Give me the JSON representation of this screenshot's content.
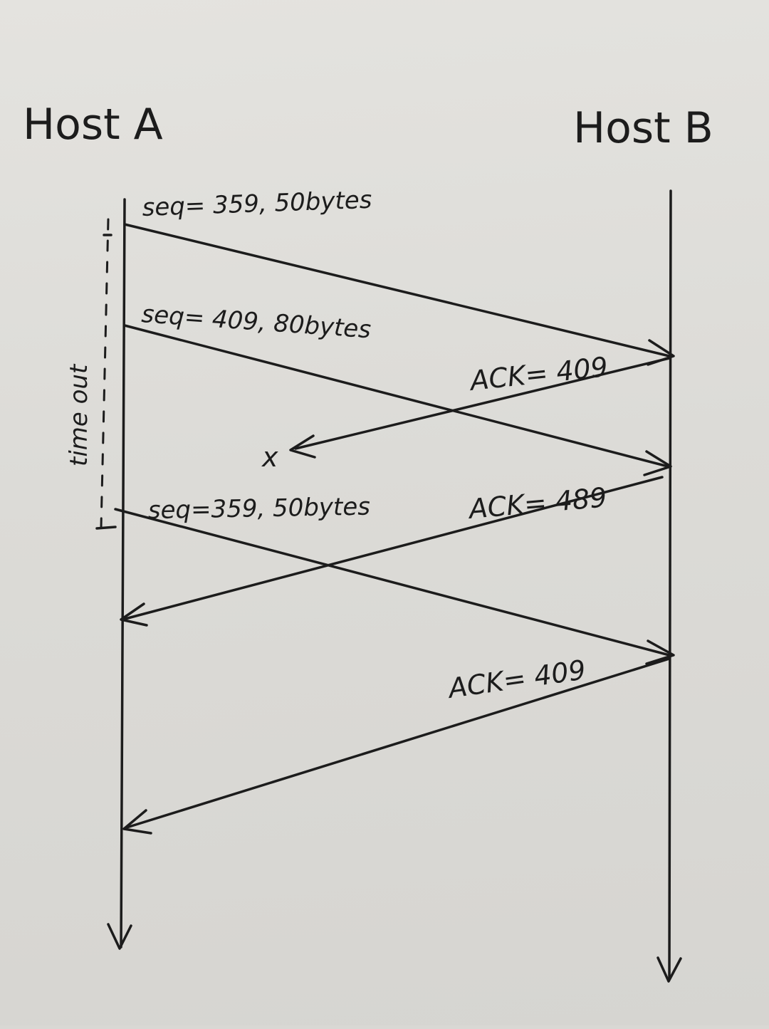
{
  "hosts": {
    "a": "Host A",
    "b": "Host B"
  },
  "messages": [
    {
      "label": "seq= 359, 50bytes",
      "direction": "A-to-B",
      "lost": false
    },
    {
      "label": "seq= 409, 80bytes",
      "direction": "A-to-B",
      "lost": false
    },
    {
      "label": "ACK= 409",
      "direction": "B-to-A",
      "lost": true
    },
    {
      "label": "ACK= 489",
      "direction": "B-to-A",
      "lost": false
    },
    {
      "label": "seq=359, 50bytes",
      "direction": "A-to-B",
      "lost": false
    },
    {
      "label": "ACK= 409",
      "direction": "B-to-A",
      "lost": false
    }
  ],
  "timeout": {
    "label": "time out"
  },
  "loss_mark": "x"
}
